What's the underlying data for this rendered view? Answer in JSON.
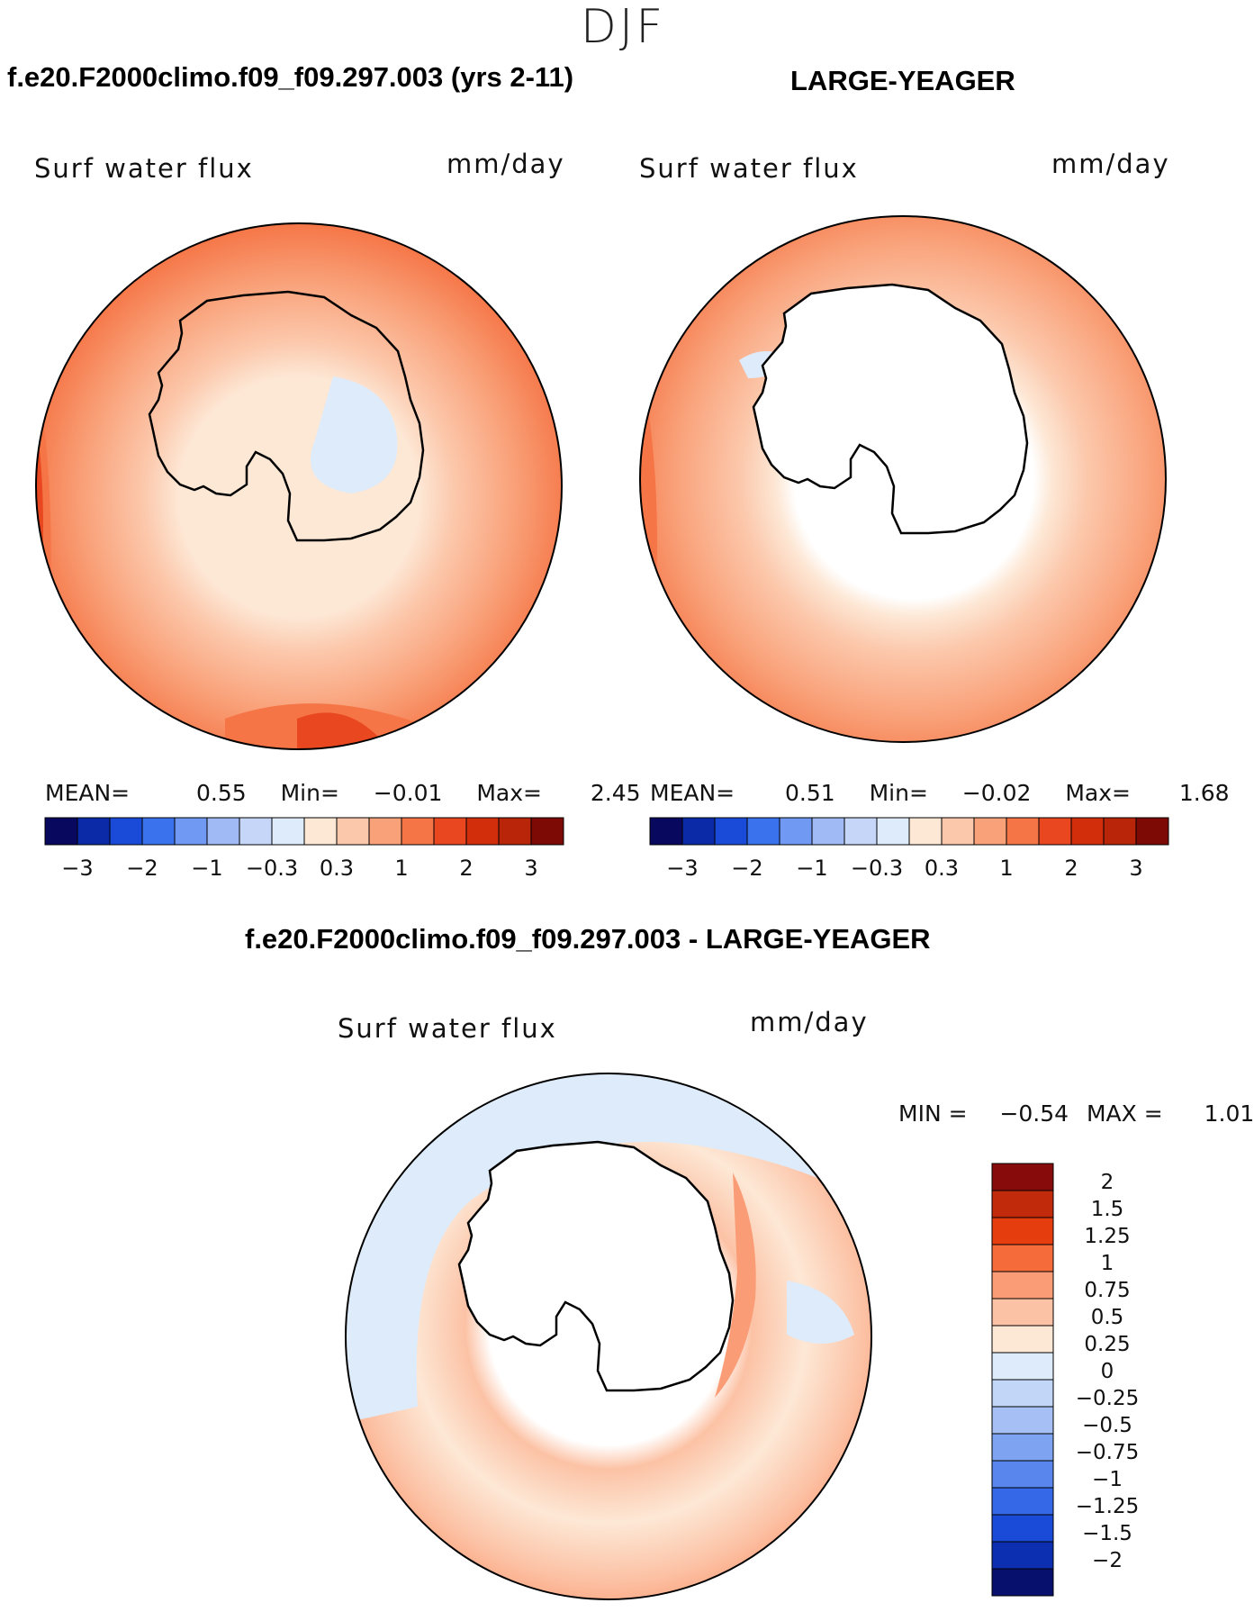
{
  "figure": {
    "season": "DJF",
    "case_title": "f.e20.F2000climo.f09_f09.297.003 (yrs 2-11)",
    "ref_title": "LARGE-YEAGER",
    "diff_title": "f.e20.F2000climo.f09_f09.297.003 - LARGE-YEAGER"
  },
  "panels": {
    "case": {
      "variable": "Surf water flux",
      "units": "mm/day",
      "mean_label": "MEAN=",
      "mean": "0.55",
      "min_label": "Min=",
      "min": "−0.01",
      "max_label": "Max=",
      "max": "2.45"
    },
    "ref": {
      "variable": "Surf water flux",
      "units": "mm/day",
      "mean_label": "MEAN=",
      "mean": "0.51",
      "min_label": "Min=",
      "min": "−0.02",
      "max_label": "Max=",
      "max": "1.68"
    },
    "diff": {
      "variable": "Surf water flux",
      "units": "mm/day",
      "min_label": "MIN =",
      "min": "−0.54",
      "max_label": "MAX =",
      "max": "1.01"
    }
  },
  "colorbars": {
    "main": {
      "colors": [
        "#08085e",
        "#0b2aa8",
        "#1a4bd8",
        "#3a72ee",
        "#6f99f3",
        "#9fbaf5",
        "#c6d6f8",
        "#deebfa",
        "#fde8d6",
        "#fcc8ac",
        "#f9a179",
        "#f57546",
        "#e9471f",
        "#d22e0c",
        "#b82508",
        "#7d0a05"
      ],
      "tick_labels": [
        "−3",
        "−2",
        "−1",
        "−0.3",
        "0.3",
        "1",
        "2",
        "3"
      ]
    },
    "diff": {
      "colors_top_to_bottom": [
        "#870b0b",
        "#c12b0c",
        "#e63d0f",
        "#f56b3a",
        "#fa9c75",
        "#fcc2a5",
        "#fde8d6",
        "#deebfa",
        "#c2d6f8",
        "#a6c0f5",
        "#7ea4f1",
        "#5886ec",
        "#3468e6",
        "#1a4bd8",
        "#0b2fb0",
        "#08106d"
      ],
      "levels": [
        "2",
        "1.5",
        "1.25",
        "1",
        "0.75",
        "0.5",
        "0.25",
        "0",
        "−0.25",
        "−0.5",
        "−0.75",
        "−1",
        "−1.25",
        "−1.5",
        "−2"
      ]
    }
  },
  "chart_data": {
    "type": "heatmap",
    "projection": "south polar stereographic",
    "variable": "Surf water flux",
    "units": "mm/day",
    "season": "DJF",
    "panels": [
      {
        "name": "f.e20.F2000climo.f09_f09.297.003 (yrs 2-11)",
        "mean": 0.55,
        "min": -0.01,
        "max": 2.45,
        "levels": [
          -3,
          -2,
          -1,
          -0.3,
          0.3,
          1,
          2,
          3
        ]
      },
      {
        "name": "LARGE-YEAGER",
        "mean": 0.51,
        "min": -0.02,
        "max": 1.68,
        "levels": [
          -3,
          -2,
          -1,
          -0.3,
          0.3,
          1,
          2,
          3
        ]
      },
      {
        "name": "f.e20.F2000climo.f09_f09.297.003 - LARGE-YEAGER",
        "min": -0.54,
        "max": 1.01,
        "levels": [
          -2,
          -1.5,
          -1.25,
          -1,
          -0.75,
          -0.5,
          -0.25,
          0,
          0.25,
          0.5,
          0.75,
          1,
          1.25,
          1.5,
          2
        ]
      }
    ]
  }
}
